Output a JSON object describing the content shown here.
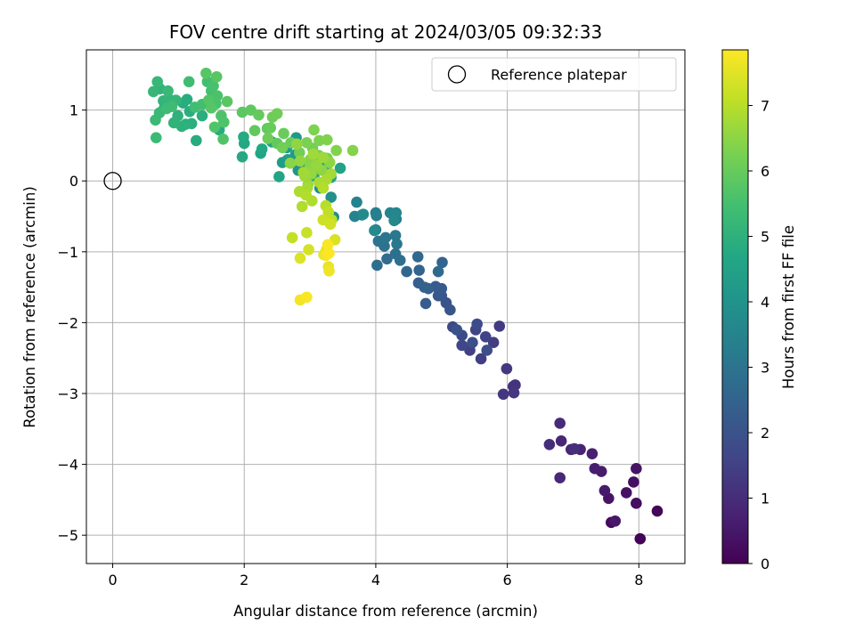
{
  "chart_data": {
    "type": "scatter",
    "title": "FOV centre drift starting at 2024/03/05 09:32:33",
    "xlabel": "Angular distance from reference (arcmin)",
    "ylabel": "Rotation from reference (arcmin)",
    "colorbar_label": "Hours from first FF file",
    "xlim": [
      -0.4,
      8.7
    ],
    "ylim": [
      -5.4,
      1.85
    ],
    "xticks": [
      0,
      2,
      4,
      6,
      8
    ],
    "yticks": [
      1,
      0,
      -1,
      -2,
      -3,
      -4,
      -5
    ],
    "colorbar_range": [
      0,
      7.85
    ],
    "colorbar_ticks": [
      0,
      1,
      2,
      3,
      4,
      5,
      6,
      7
    ],
    "colormap": "viridis",
    "grid": true,
    "legend": {
      "placement": "top-right",
      "entries": [
        "Reference platepar"
      ]
    },
    "reference_point": {
      "x": 0,
      "y": 0
    },
    "points": [
      [
        8.02,
        -5.05,
        0.05
      ],
      [
        8.28,
        -4.66,
        0.1
      ],
      [
        7.58,
        -4.82,
        0.2
      ],
      [
        7.96,
        -4.55,
        0.25
      ],
      [
        7.92,
        -4.25,
        0.3
      ],
      [
        7.81,
        -4.4,
        0.35
      ],
      [
        7.96,
        -4.06,
        0.4
      ],
      [
        7.54,
        -4.48,
        0.45
      ],
      [
        7.64,
        -4.8,
        0.5
      ],
      [
        7.48,
        -4.37,
        0.55
      ],
      [
        7.43,
        -4.1,
        0.6
      ],
      [
        7.33,
        -4.06,
        0.65
      ],
      [
        7.29,
        -3.85,
        0.7
      ],
      [
        7.11,
        -3.79,
        0.75
      ],
      [
        6.97,
        -3.79,
        0.8
      ],
      [
        6.82,
        -3.67,
        0.85
      ],
      [
        6.8,
        -4.19,
        0.9
      ],
      [
        6.8,
        -3.42,
        0.95
      ],
      [
        6.64,
        -3.72,
        1.0
      ],
      [
        7.02,
        -3.78,
        1.05
      ],
      [
        6.09,
        -2.9,
        1.1
      ],
      [
        6.12,
        -2.88,
        1.15
      ],
      [
        5.94,
        -3.01,
        1.2
      ],
      [
        6.1,
        -2.99,
        1.25
      ],
      [
        5.99,
        -2.65,
        1.3
      ],
      [
        5.88,
        -2.05,
        1.35
      ],
      [
        5.79,
        -2.28,
        1.4
      ],
      [
        5.6,
        -2.51,
        1.45
      ],
      [
        5.43,
        -2.39,
        1.5
      ],
      [
        5.67,
        -2.2,
        1.55
      ],
      [
        5.52,
        -2.1,
        1.6
      ],
      [
        5.31,
        -2.32,
        1.65
      ],
      [
        5.17,
        -2.06,
        1.7
      ],
      [
        5.31,
        -2.18,
        1.75
      ],
      [
        5.54,
        -2.02,
        1.8
      ],
      [
        5.69,
        -2.39,
        1.85
      ],
      [
        5.47,
        -2.28,
        1.9
      ],
      [
        5.23,
        -2.1,
        1.95
      ],
      [
        5.07,
        -1.72,
        2.0
      ],
      [
        5.0,
        -1.62,
        2.05
      ],
      [
        5.13,
        -1.82,
        2.1
      ],
      [
        4.95,
        -1.62,
        2.15
      ],
      [
        5.0,
        -1.52,
        2.2
      ],
      [
        4.91,
        -1.49,
        2.25
      ],
      [
        4.76,
        -1.73,
        2.3
      ],
      [
        4.65,
        -1.44,
        2.35
      ],
      [
        4.8,
        -1.52,
        2.4
      ],
      [
        4.74,
        -1.5,
        2.45
      ],
      [
        4.66,
        -1.26,
        2.5
      ],
      [
        5.01,
        -1.15,
        2.55
      ],
      [
        4.47,
        -1.28,
        2.6
      ],
      [
        4.64,
        -1.07,
        2.65
      ],
      [
        4.95,
        -1.28,
        2.7
      ],
      [
        4.17,
        -1.1,
        2.75
      ],
      [
        4.02,
        -1.19,
        2.8
      ],
      [
        4.37,
        -1.12,
        2.85
      ],
      [
        4.3,
        -1.03,
        2.9
      ],
      [
        4.13,
        -0.92,
        2.95
      ],
      [
        4.04,
        -0.85,
        3.0
      ],
      [
        4.15,
        -0.8,
        3.05
      ],
      [
        4.32,
        -0.89,
        3.1
      ],
      [
        4.3,
        -0.77,
        3.15
      ],
      [
        4.0,
        -0.69,
        3.2
      ],
      [
        4.31,
        -0.54,
        3.25
      ],
      [
        4.01,
        -0.49,
        3.3
      ],
      [
        4.0,
        -0.45,
        3.35
      ],
      [
        3.79,
        -0.48,
        3.4
      ],
      [
        3.68,
        -0.5,
        3.45
      ],
      [
        3.71,
        -0.3,
        3.5
      ],
      [
        4.22,
        -0.45,
        3.55
      ],
      [
        4.31,
        -0.45,
        3.6
      ],
      [
        4.28,
        -0.56,
        3.65
      ],
      [
        3.98,
        -0.7,
        3.7
      ],
      [
        3.81,
        -0.47,
        3.75
      ],
      [
        3.36,
        -0.51,
        3.8
      ],
      [
        3.32,
        -0.23,
        3.85
      ],
      [
        3.15,
        -0.1,
        3.9
      ],
      [
        2.98,
        0.05,
        4.0
      ],
      [
        2.82,
        0.15,
        4.05
      ],
      [
        2.97,
        0.22,
        4.1
      ],
      [
        2.78,
        0.37,
        4.15
      ],
      [
        2.79,
        0.61,
        4.2
      ],
      [
        2.65,
        0.47,
        4.25
      ],
      [
        2.58,
        0.26,
        4.3
      ],
      [
        2.66,
        0.3,
        4.35
      ],
      [
        3.06,
        0.07,
        4.4
      ],
      [
        3.25,
        0.21,
        4.45
      ],
      [
        3.46,
        0.18,
        4.5
      ],
      [
        3.32,
        0.05,
        4.55
      ],
      [
        2.53,
        0.06,
        4.6
      ],
      [
        2.25,
        0.39,
        4.62
      ],
      [
        2.42,
        0.55,
        4.65
      ],
      [
        2.27,
        0.45,
        4.7
      ],
      [
        2.0,
        0.53,
        4.72
      ],
      [
        1.97,
        0.34,
        4.75
      ],
      [
        1.99,
        0.62,
        4.78
      ],
      [
        1.62,
        0.72,
        4.8
      ],
      [
        1.27,
        0.57,
        4.82
      ],
      [
        1.13,
        1.15,
        4.85
      ],
      [
        1.07,
        1.1,
        4.88
      ],
      [
        1.17,
        0.98,
        4.9
      ],
      [
        1.36,
        0.92,
        4.92
      ],
      [
        1.2,
        0.81,
        4.95
      ],
      [
        1.11,
        0.8,
        4.97
      ],
      [
        0.99,
        0.92,
        5.0
      ],
      [
        1.05,
        0.77,
        5.02
      ],
      [
        0.93,
        0.82,
        5.05
      ],
      [
        0.78,
        1.02,
        5.08
      ],
      [
        0.72,
        1.3,
        5.1
      ],
      [
        0.77,
        1.13,
        5.12
      ],
      [
        0.86,
        1.15,
        5.15
      ],
      [
        0.96,
        1.14,
        5.17
      ],
      [
        0.62,
        1.26,
        5.2
      ],
      [
        0.68,
        1.4,
        5.22
      ],
      [
        0.84,
        1.27,
        5.25
      ],
      [
        0.71,
        0.96,
        5.27
      ],
      [
        0.65,
        0.86,
        5.3
      ],
      [
        0.66,
        0.61,
        5.32
      ],
      [
        0.82,
        1.02,
        5.35
      ],
      [
        0.9,
        1.05,
        5.37
      ],
      [
        1.16,
        1.4,
        5.4
      ],
      [
        1.25,
        1.04,
        5.42
      ],
      [
        1.36,
        1.08,
        5.45
      ],
      [
        1.44,
        1.4,
        5.47
      ],
      [
        1.5,
        1.27,
        5.5
      ],
      [
        1.51,
        1.08,
        5.52
      ],
      [
        1.53,
        1.34,
        5.55
      ],
      [
        1.57,
        1.09,
        5.57
      ],
      [
        1.59,
        1.2,
        5.6
      ],
      [
        1.65,
        0.92,
        5.62
      ],
      [
        1.69,
        0.83,
        5.65
      ],
      [
        1.68,
        0.59,
        5.67
      ],
      [
        1.55,
        0.76,
        5.7
      ],
      [
        1.46,
        1.14,
        5.72
      ],
      [
        1.5,
        1.03,
        5.75
      ],
      [
        1.42,
        1.52,
        5.77
      ],
      [
        1.58,
        1.47,
        5.8
      ],
      [
        1.74,
        1.12,
        5.82
      ],
      [
        1.97,
        0.97,
        5.85
      ],
      [
        2.1,
        1.0,
        5.87
      ],
      [
        2.16,
        0.71,
        5.9
      ],
      [
        2.35,
        0.74,
        5.92
      ],
      [
        2.5,
        0.53,
        5.95
      ],
      [
        2.22,
        0.93,
        5.97
      ],
      [
        2.4,
        0.75,
        6.0
      ],
      [
        2.6,
        0.67,
        6.02
      ],
      [
        2.71,
        0.54,
        6.05
      ],
      [
        2.43,
        0.9,
        6.07
      ],
      [
        2.36,
        0.6,
        6.1
      ],
      [
        2.5,
        0.95,
        6.12
      ],
      [
        2.58,
        0.47,
        6.15
      ],
      [
        2.84,
        0.4,
        6.17
      ],
      [
        3.04,
        0.46,
        6.2
      ],
      [
        3.13,
        0.36,
        6.22
      ],
      [
        3.26,
        0.32,
        6.25
      ],
      [
        2.95,
        0.54,
        6.27
      ],
      [
        3.14,
        0.57,
        6.3
      ],
      [
        3.06,
        0.72,
        6.32
      ],
      [
        3.26,
        0.58,
        6.35
      ],
      [
        3.4,
        0.43,
        6.37
      ],
      [
        3.65,
        0.43,
        6.4
      ],
      [
        3.0,
        0.3,
        6.42
      ],
      [
        2.7,
        0.25,
        6.45
      ],
      [
        3.0,
        0.2,
        6.47
      ],
      [
        3.18,
        0.15,
        6.5
      ],
      [
        3.3,
        0.26,
        6.52
      ],
      [
        2.8,
        0.52,
        6.55
      ],
      [
        2.85,
        0.28,
        6.57
      ],
      [
        3.02,
        0.1,
        6.6
      ],
      [
        3.1,
        0.22,
        6.62
      ],
      [
        2.92,
        0.07,
        6.65
      ],
      [
        2.97,
        -0.05,
        6.67
      ],
      [
        3.2,
        0.33,
        6.7
      ],
      [
        3.05,
        0.38,
        6.72
      ],
      [
        2.9,
        0.12,
        6.75
      ],
      [
        3.32,
        0.1,
        6.77
      ],
      [
        2.96,
        -0.1,
        6.8
      ],
      [
        3.14,
        -0.02,
        6.82
      ],
      [
        3.25,
        0.02,
        6.85
      ],
      [
        2.84,
        -0.15,
        6.87
      ],
      [
        3.03,
        -0.28,
        6.9
      ],
      [
        2.88,
        -0.36,
        6.92
      ],
      [
        2.94,
        -0.2,
        6.95
      ],
      [
        3.2,
        -0.1,
        6.97
      ],
      [
        3.24,
        -0.35,
        7.0
      ],
      [
        3.33,
        -0.55,
        7.05
      ],
      [
        3.28,
        -0.44,
        7.1
      ],
      [
        2.73,
        -0.8,
        7.15
      ],
      [
        2.95,
        -0.73,
        7.2
      ],
      [
        3.2,
        -0.55,
        7.25
      ],
      [
        3.31,
        -0.61,
        7.3
      ],
      [
        2.98,
        -0.97,
        7.35
      ],
      [
        3.38,
        -0.83,
        7.4
      ],
      [
        2.85,
        -1.09,
        7.45
      ],
      [
        3.25,
        -0.97,
        7.5
      ],
      [
        3.21,
        -1.04,
        7.55
      ],
      [
        3.28,
        -1.21,
        7.6
      ],
      [
        3.29,
        -1.27,
        7.65
      ],
      [
        2.85,
        -1.68,
        7.7
      ],
      [
        3.24,
        -1.05,
        7.75
      ],
      [
        2.95,
        -1.64,
        7.8
      ],
      [
        3.29,
        -1.02,
        7.85
      ],
      [
        3.27,
        -0.9,
        7.8
      ]
    ]
  }
}
